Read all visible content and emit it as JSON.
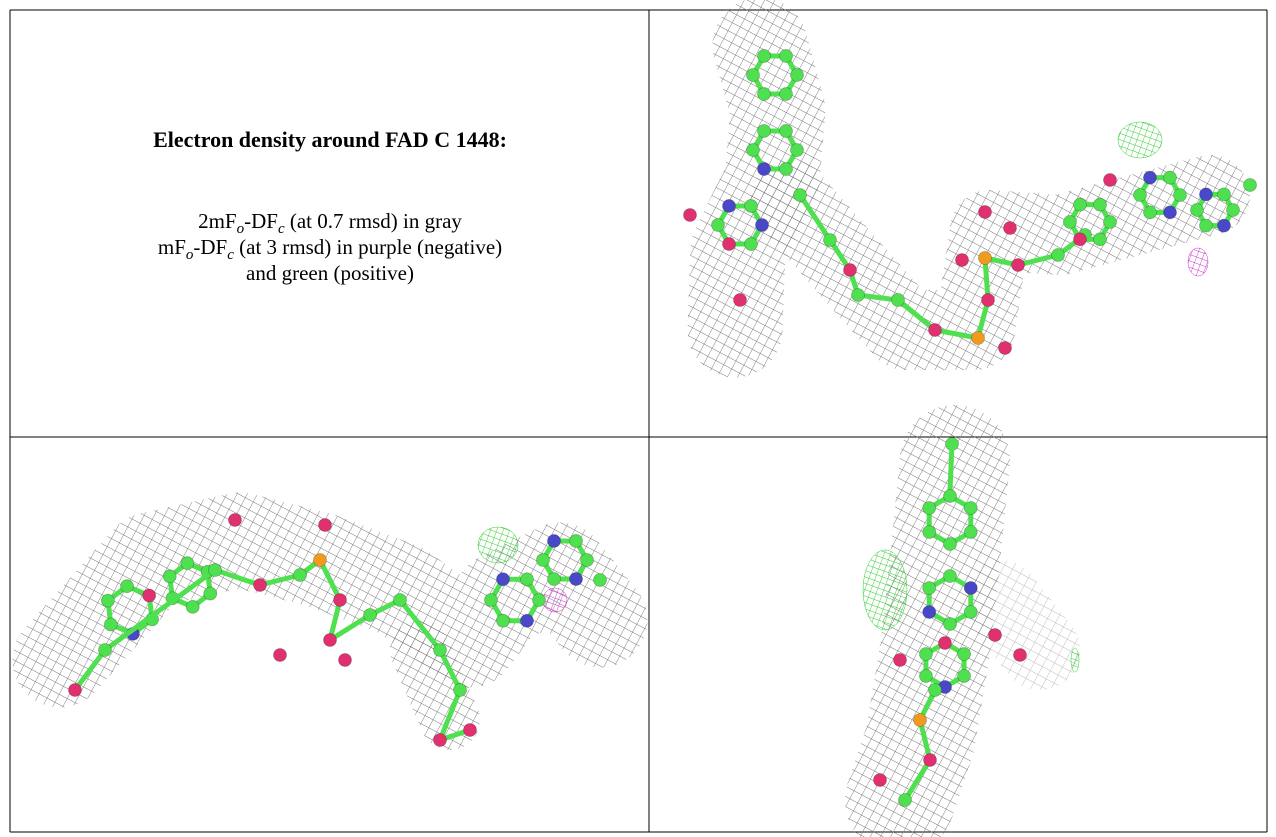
{
  "caption": {
    "title": "Electron density around FAD C 1448:",
    "line1": {
      "a": "2mF",
      "a_sub": "o",
      "b": "-DF",
      "b_sub": "c",
      "rest": " (at 0.7 rmsd) in gray"
    },
    "line2": {
      "a": "mF",
      "a_sub": "o",
      "b": "-DF",
      "b_sub": "c",
      "rest": " (at 3 rmsd) in purple (negative)"
    },
    "line3": "and green (positive)"
  }
}
